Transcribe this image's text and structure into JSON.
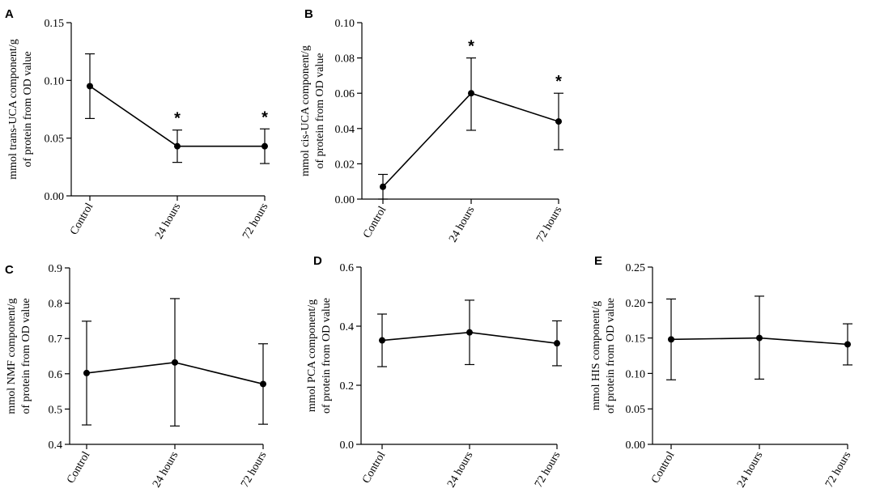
{
  "chart_data": [
    {
      "panel": "A",
      "type": "line",
      "ylabel_lines": [
        "mmol trans-UCA component/g",
        "of protein from OD value"
      ],
      "categories": [
        "Control",
        "24 hours",
        "72 hours"
      ],
      "values": [
        0.095,
        0.043,
        0.043
      ],
      "err_low": [
        0.067,
        0.029,
        0.028
      ],
      "err_high": [
        0.123,
        0.057,
        0.058
      ],
      "ylim": [
        0,
        0.15
      ],
      "yticks": [
        "0.00",
        "0.05",
        "0.10",
        "0.15"
      ],
      "significance": [
        "",
        "*",
        "*"
      ]
    },
    {
      "panel": "B",
      "type": "line",
      "ylabel_lines": [
        "mmol cis-UCA component/g",
        "of protein from OD value"
      ],
      "categories": [
        "Control",
        "24 hours",
        "72 hours"
      ],
      "values": [
        0.007,
        0.06,
        0.044
      ],
      "err_low": [
        0.0,
        0.039,
        0.028
      ],
      "err_high": [
        0.014,
        0.08,
        0.06
      ],
      "ylim": [
        0,
        0.1
      ],
      "yticks": [
        "0.00",
        "0.02",
        "0.04",
        "0.06",
        "0.08",
        "0.10"
      ],
      "significance": [
        "",
        "*",
        "*"
      ]
    },
    {
      "panel": "C",
      "type": "line",
      "ylabel_lines": [
        "mmol NMF component/g",
        "of protein from OD value"
      ],
      "categories": [
        "Control",
        "24 hours",
        "72 hours"
      ],
      "values": [
        0.602,
        0.632,
        0.571
      ],
      "err_low": [
        0.455,
        0.452,
        0.457
      ],
      "err_high": [
        0.749,
        0.813,
        0.685
      ],
      "ylim": [
        0.4,
        0.9
      ],
      "yticks": [
        "0.4",
        "0.5",
        "0.6",
        "0.7",
        "0.8",
        "0.9"
      ],
      "significance": [
        "",
        "",
        ""
      ]
    },
    {
      "panel": "D",
      "type": "line",
      "ylabel_lines": [
        "mmol PCA component/g",
        "of protein from OD value"
      ],
      "categories": [
        "Control",
        "24 hours",
        "72 hours"
      ],
      "values": [
        0.352,
        0.379,
        0.342
      ],
      "err_low": [
        0.263,
        0.27,
        0.266
      ],
      "err_high": [
        0.441,
        0.488,
        0.418
      ],
      "ylim": [
        0,
        0.6
      ],
      "yticks": [
        "0.0",
        "0.2",
        "0.4",
        "0.6"
      ],
      "significance": [
        "",
        "",
        ""
      ]
    },
    {
      "panel": "E",
      "type": "line",
      "ylabel_lines": [
        "mmol HIS component/g",
        "of protein from OD value"
      ],
      "categories": [
        "Control",
        "24 hours",
        "72 hours"
      ],
      "values": [
        0.148,
        0.15,
        0.141
      ],
      "err_low": [
        0.091,
        0.092,
        0.112
      ],
      "err_high": [
        0.205,
        0.209,
        0.17
      ],
      "ylim": [
        0,
        0.25
      ],
      "yticks": [
        "0.00",
        "0.05",
        "0.10",
        "0.15",
        "0.20",
        "0.25"
      ],
      "significance": [
        "",
        "",
        ""
      ]
    }
  ]
}
